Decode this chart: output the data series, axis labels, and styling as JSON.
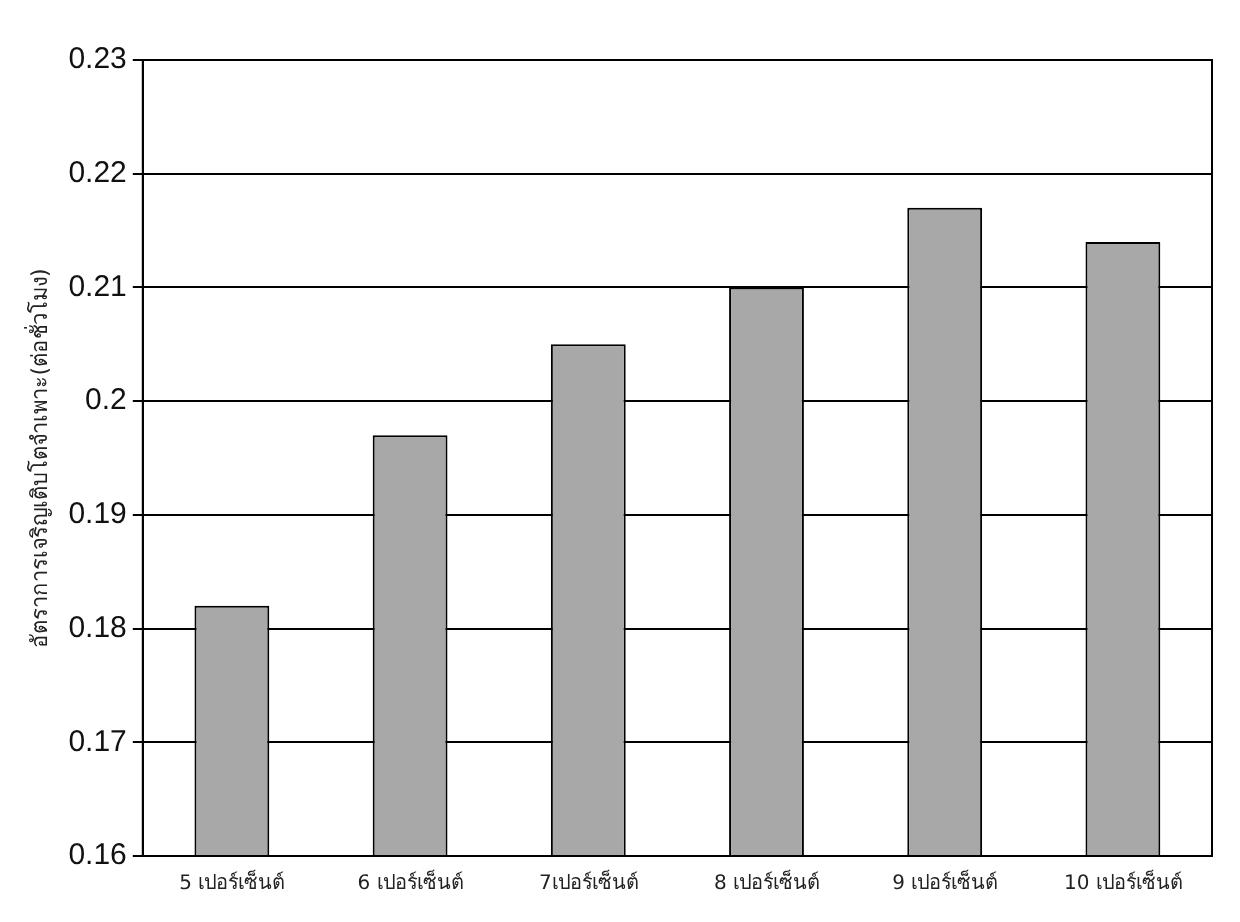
{
  "chart_data": {
    "type": "bar",
    "ylabel": "อัตราการเจริญเติบโตจำเพาะ(ต่อชั่วโมง)",
    "categories": [
      "5 เปอร์เซ็นต์",
      "6 เปอร์เซ็นต์",
      "7เปอร์เซ็นต์",
      "8 เปอร์เซ็นต์",
      "9 เปอร์เซ็นต์",
      "10 เปอร์เซ็นต์"
    ],
    "values": [
      0.182,
      0.197,
      0.205,
      0.21,
      0.217,
      0.214
    ],
    "color": "#a8a8a8",
    "ylim": [
      0.16,
      0.23
    ],
    "yticks": [
      0.16,
      0.17,
      0.18,
      0.19,
      0.2,
      0.21,
      0.22,
      0.23
    ],
    "grid": "y",
    "legend": false
  }
}
